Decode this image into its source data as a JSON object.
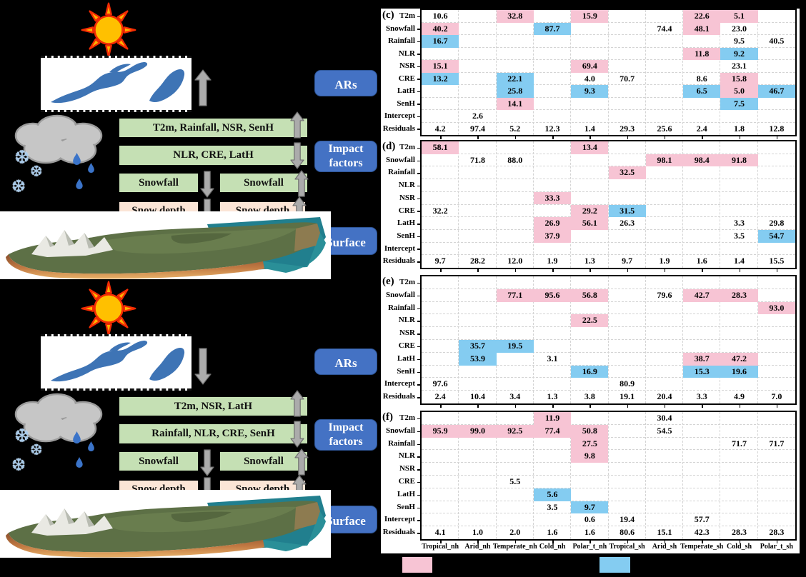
{
  "colors": {
    "page_bg": "#000000",
    "panel_bg": "#FFFFFF",
    "green_bar": "#C5E0B4",
    "peach_bar": "#FBE5D6",
    "blue_box": "#4472C4",
    "arrow_gray": "#ABABAB",
    "ar_blob_blue": "#3E74B5",
    "sun_orange": "#FFC000",
    "sun_ray_red": "#F42B03"
  },
  "legend": {
    "pink": "#F7C4D4",
    "blue": "#84CCF1"
  },
  "figure": {
    "scenes": [
      {
        "name": "ars-strong-scene",
        "flow_arrow": "up",
        "labels": {
          "ars": "ARs",
          "impact": "Impact factors",
          "surface": "Surface"
        },
        "bars": [
          {
            "slot": "full1",
            "style": "green",
            "label": "T2m,  Rainfall,  NSR, SenH",
            "arrow": "up"
          },
          {
            "slot": "full2",
            "style": "green",
            "label": "NLR, CRE, LatH",
            "arrow": "down"
          },
          {
            "slot": "left3",
            "style": "green",
            "label": "Snowfall",
            "arrow": "down"
          },
          {
            "slot": "right3",
            "style": "green",
            "label": "Snowfall",
            "arrow": "up"
          },
          {
            "slot": "left4",
            "style": "peach",
            "label": "Snow depth",
            "arrow": "down"
          },
          {
            "slot": "right4",
            "style": "peach",
            "label": "Snow depth",
            "arrow": "up"
          }
        ]
      },
      {
        "name": "ars-weak-scene",
        "flow_arrow": "down",
        "labels": {
          "ars": "ARs",
          "impact": "Impact factors",
          "surface": "Surface"
        },
        "bars": [
          {
            "slot": "full1",
            "style": "green",
            "label": "T2m,  NSR, LatH",
            "arrow": "up"
          },
          {
            "slot": "full2",
            "style": "green",
            "label": "Rainfall, NLR, CRE, SenH",
            "arrow": "down"
          },
          {
            "slot": "left3",
            "style": "green",
            "label": "Snowfall",
            "arrow": "down"
          },
          {
            "slot": "right3",
            "style": "green",
            "label": "Snowfall",
            "arrow": "up"
          },
          {
            "slot": "left4",
            "style": "peach",
            "label": "Snow depth",
            "arrow": "down"
          },
          {
            "slot": "right4",
            "style": "peach",
            "label": "Snow depth",
            "arrow": "up"
          }
        ]
      }
    ]
  },
  "cell_format": "[row_index, col_index, value, fill] where fill: p=pink, b=blue, ''=white",
  "chart_data": [
    {
      "type": "heatmap",
      "panel_label": "(c)",
      "rows": [
        "T2m",
        "Snowfall",
        "Rainfall",
        "NLR",
        "NSR",
        "CRE",
        "LatH",
        "SenH",
        "Intercept",
        "Residuals"
      ],
      "columns": [
        "Tropical_nh",
        "Arid_nh",
        "Temperate_nh",
        "Cold_nh",
        "Polar_t_nh",
        "Tropical_sh",
        "Arid_sh",
        "Temperate_sh",
        "Cold_sh",
        "Polar_t_sh"
      ],
      "cells": [
        [
          0,
          0,
          "10.6",
          ""
        ],
        [
          0,
          2,
          "32.8",
          "p"
        ],
        [
          0,
          4,
          "15.9",
          "p"
        ],
        [
          0,
          7,
          "22.6",
          "p"
        ],
        [
          0,
          8,
          "5.1",
          "p"
        ],
        [
          1,
          0,
          "40.2",
          "p"
        ],
        [
          1,
          3,
          "87.7",
          "b"
        ],
        [
          1,
          6,
          "74.4",
          ""
        ],
        [
          1,
          7,
          "48.1",
          "p"
        ],
        [
          1,
          8,
          "23.0",
          ""
        ],
        [
          2,
          0,
          "16.7",
          "b"
        ],
        [
          2,
          8,
          "9.5",
          ""
        ],
        [
          2,
          9,
          "40.5",
          ""
        ],
        [
          3,
          7,
          "11.8",
          "p"
        ],
        [
          3,
          8,
          "9.2",
          "b"
        ],
        [
          4,
          0,
          "15.1",
          "p"
        ],
        [
          4,
          4,
          "69.4",
          "p"
        ],
        [
          4,
          8,
          "23.1",
          ""
        ],
        [
          5,
          0,
          "13.2",
          "b"
        ],
        [
          5,
          2,
          "22.1",
          "b"
        ],
        [
          5,
          4,
          "4.0",
          ""
        ],
        [
          5,
          5,
          "70.7",
          ""
        ],
        [
          5,
          7,
          "8.6",
          ""
        ],
        [
          5,
          8,
          "15.8",
          "p"
        ],
        [
          6,
          2,
          "25.8",
          "b"
        ],
        [
          6,
          4,
          "9.3",
          "b"
        ],
        [
          6,
          7,
          "6.5",
          "b"
        ],
        [
          6,
          8,
          "5.0",
          "p"
        ],
        [
          6,
          9,
          "46.7",
          "b"
        ],
        [
          7,
          2,
          "14.1",
          "p"
        ],
        [
          7,
          8,
          "7.5",
          "b"
        ],
        [
          8,
          1,
          "2.6",
          ""
        ],
        [
          9,
          0,
          "4.2",
          ""
        ],
        [
          9,
          1,
          "97.4",
          ""
        ],
        [
          9,
          2,
          "5.2",
          ""
        ],
        [
          9,
          3,
          "12.3",
          ""
        ],
        [
          9,
          4,
          "1.4",
          ""
        ],
        [
          9,
          5,
          "29.3",
          ""
        ],
        [
          9,
          6,
          "25.6",
          ""
        ],
        [
          9,
          7,
          "2.4",
          ""
        ],
        [
          9,
          8,
          "1.8",
          ""
        ],
        [
          9,
          9,
          "12.8",
          ""
        ]
      ]
    },
    {
      "type": "heatmap",
      "panel_label": "(d)",
      "rows": [
        "T2m",
        "Snowfall",
        "Rainfall",
        "NLR",
        "NSR",
        "CRE",
        "LatH",
        "SenH",
        "Intercept",
        "Residuals"
      ],
      "columns": [
        "Tropical_nh",
        "Arid_nh",
        "Temperate_nh",
        "Cold_nh",
        "Polar_t_nh",
        "Tropical_sh",
        "Arid_sh",
        "Temperate_sh",
        "Cold_sh",
        "Polar_t_sh"
      ],
      "cells": [
        [
          0,
          0,
          "58.1",
          "p"
        ],
        [
          0,
          4,
          "13.4",
          "p"
        ],
        [
          1,
          1,
          "71.8",
          ""
        ],
        [
          1,
          2,
          "88.0",
          ""
        ],
        [
          1,
          6,
          "98.1",
          "p"
        ],
        [
          1,
          7,
          "98.4",
          "p"
        ],
        [
          1,
          8,
          "91.8",
          "p"
        ],
        [
          2,
          5,
          "32.5",
          "p"
        ],
        [
          4,
          3,
          "33.3",
          "p"
        ],
        [
          5,
          0,
          "32.2",
          ""
        ],
        [
          5,
          4,
          "29.2",
          "p"
        ],
        [
          5,
          5,
          "31.5",
          "b"
        ],
        [
          6,
          3,
          "26.9",
          "p"
        ],
        [
          6,
          4,
          "56.1",
          "p"
        ],
        [
          6,
          5,
          "26.3",
          ""
        ],
        [
          6,
          8,
          "3.3",
          ""
        ],
        [
          6,
          9,
          "29.8",
          ""
        ],
        [
          7,
          3,
          "37.9",
          "p"
        ],
        [
          7,
          8,
          "3.5",
          ""
        ],
        [
          7,
          9,
          "54.7",
          "b"
        ],
        [
          9,
          0,
          "9.7",
          ""
        ],
        [
          9,
          1,
          "28.2",
          ""
        ],
        [
          9,
          2,
          "12.0",
          ""
        ],
        [
          9,
          3,
          "1.9",
          ""
        ],
        [
          9,
          4,
          "1.3",
          ""
        ],
        [
          9,
          5,
          "9.7",
          ""
        ],
        [
          9,
          6,
          "1.9",
          ""
        ],
        [
          9,
          7,
          "1.6",
          ""
        ],
        [
          9,
          8,
          "1.4",
          ""
        ],
        [
          9,
          9,
          "15.5",
          ""
        ]
      ]
    },
    {
      "type": "heatmap",
      "panel_label": "(e)",
      "rows": [
        "T2m",
        "Snowfall",
        "Rainfall",
        "NLR",
        "NSR",
        "CRE",
        "LatH",
        "SenH",
        "Intercept",
        "Residuals"
      ],
      "columns": [
        "Tropical_nh",
        "Arid_nh",
        "Temperate_nh",
        "Cold_nh",
        "Polar_t_nh",
        "Tropical_sh",
        "Arid_sh",
        "Temperate_sh",
        "Cold_sh",
        "Polar_t_sh"
      ],
      "cells": [
        [
          1,
          2,
          "77.1",
          "p"
        ],
        [
          1,
          3,
          "95.6",
          "p"
        ],
        [
          1,
          4,
          "56.8",
          "p"
        ],
        [
          1,
          6,
          "79.6",
          ""
        ],
        [
          1,
          7,
          "42.7",
          "p"
        ],
        [
          1,
          8,
          "28.3",
          "p"
        ],
        [
          2,
          9,
          "93.0",
          "p"
        ],
        [
          3,
          4,
          "22.5",
          "p"
        ],
        [
          5,
          1,
          "35.7",
          "b"
        ],
        [
          5,
          2,
          "19.5",
          "b"
        ],
        [
          6,
          1,
          "53.9",
          "b"
        ],
        [
          6,
          3,
          "3.1",
          ""
        ],
        [
          6,
          7,
          "38.7",
          "p"
        ],
        [
          6,
          8,
          "47.2",
          "p"
        ],
        [
          7,
          4,
          "16.9",
          "b"
        ],
        [
          7,
          7,
          "15.3",
          "b"
        ],
        [
          7,
          8,
          "19.6",
          "b"
        ],
        [
          8,
          0,
          "97.6",
          ""
        ],
        [
          8,
          5,
          "80.9",
          ""
        ],
        [
          9,
          0,
          "2.4",
          ""
        ],
        [
          9,
          1,
          "10.4",
          ""
        ],
        [
          9,
          2,
          "3.4",
          ""
        ],
        [
          9,
          3,
          "1.3",
          ""
        ],
        [
          9,
          4,
          "3.8",
          ""
        ],
        [
          9,
          5,
          "19.1",
          ""
        ],
        [
          9,
          6,
          "20.4",
          ""
        ],
        [
          9,
          7,
          "3.3",
          ""
        ],
        [
          9,
          8,
          "4.9",
          ""
        ],
        [
          9,
          9,
          "7.0",
          ""
        ]
      ]
    },
    {
      "type": "heatmap",
      "panel_label": "(f)",
      "rows": [
        "T2m",
        "Snowfall",
        "Rainfall",
        "NLR",
        "NSR",
        "CRE",
        "LatH",
        "SenH",
        "Intercept",
        "Residuals"
      ],
      "columns": [
        "Tropical_nh",
        "Arid_nh",
        "Temperate_nh",
        "Cold_nh",
        "Polar_t_nh",
        "Tropical_sh",
        "Arid_sh",
        "Temperate_sh",
        "Cold_sh",
        "Polar_t_sh"
      ],
      "cells": [
        [
          0,
          3,
          "11.9",
          "p"
        ],
        [
          0,
          6,
          "30.4",
          ""
        ],
        [
          1,
          0,
          "95.9",
          "p"
        ],
        [
          1,
          1,
          "99.0",
          "p"
        ],
        [
          1,
          2,
          "92.5",
          "p"
        ],
        [
          1,
          3,
          "77.4",
          "p"
        ],
        [
          1,
          4,
          "50.8",
          "p"
        ],
        [
          1,
          6,
          "54.5",
          ""
        ],
        [
          2,
          4,
          "27.5",
          "p"
        ],
        [
          2,
          8,
          "71.7",
          ""
        ],
        [
          2,
          9,
          "71.7",
          ""
        ],
        [
          3,
          4,
          "9.8",
          "p"
        ],
        [
          5,
          2,
          "5.5",
          ""
        ],
        [
          6,
          3,
          "5.6",
          "b"
        ],
        [
          7,
          3,
          "3.5",
          ""
        ],
        [
          7,
          4,
          "9.7",
          "b"
        ],
        [
          8,
          4,
          "0.6",
          ""
        ],
        [
          8,
          5,
          "19.4",
          ""
        ],
        [
          8,
          7,
          "57.7",
          ""
        ],
        [
          9,
          0,
          "4.1",
          ""
        ],
        [
          9,
          1,
          "1.0",
          ""
        ],
        [
          9,
          2,
          "2.0",
          ""
        ],
        [
          9,
          3,
          "1.6",
          ""
        ],
        [
          9,
          4,
          "1.6",
          ""
        ],
        [
          9,
          5,
          "80.6",
          ""
        ],
        [
          9,
          6,
          "15.1",
          ""
        ],
        [
          9,
          7,
          "42.3",
          ""
        ],
        [
          9,
          8,
          "28.3",
          ""
        ],
        [
          9,
          9,
          "28.3",
          ""
        ]
      ]
    }
  ]
}
